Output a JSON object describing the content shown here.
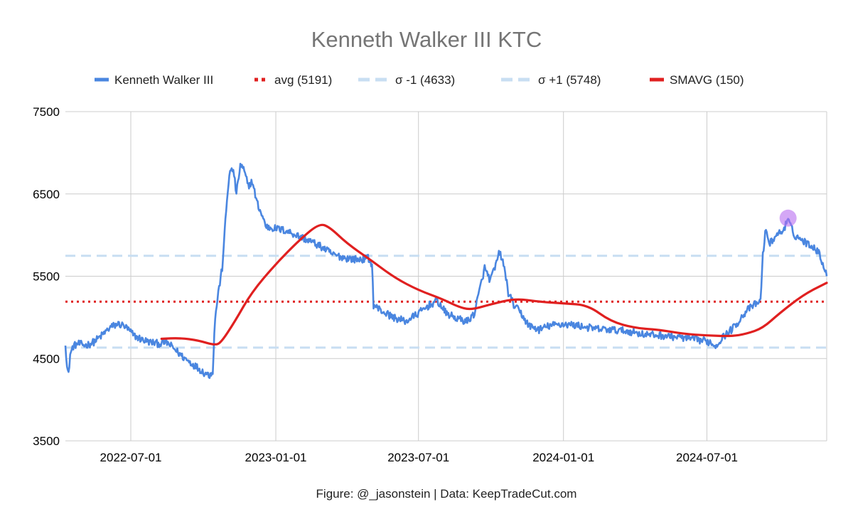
{
  "chart_data": {
    "type": "line",
    "title": "Kenneth Walker III KTC",
    "footer": "Figure: @_jasonstein | Data: KeepTradeCut.com",
    "xlabel": "",
    "ylabel": "",
    "x_range": [
      "2022-04-09",
      "2024-11-30"
    ],
    "ylim": [
      3500,
      7500
    ],
    "y_ticks": [
      "7500",
      "6500",
      "5500",
      "4500",
      "3500"
    ],
    "x_ticks": [
      "2022-07-01",
      "2023-01-01",
      "2023-07-01",
      "2024-01-01",
      "2024-07-01"
    ],
    "grid": true,
    "legend_position": "top",
    "legend": [
      {
        "label": "Kenneth Walker III",
        "color": "#4a86e0",
        "style": "solid"
      },
      {
        "label": "avg (5191)",
        "color": "#e02020",
        "style": "dotted"
      },
      {
        "label": "σ -1 (4633)",
        "color": "#c8def2",
        "style": "dashed"
      },
      {
        "label": "σ +1 (5748)",
        "color": "#c8def2",
        "style": "dashed"
      },
      {
        "label": "SMAVG (150)",
        "color": "#e02020",
        "style": "solid"
      }
    ],
    "reference_lines": {
      "avg": 5191,
      "sigma_minus_1": 4633,
      "sigma_plus_1": 5748
    },
    "series": [
      {
        "name": "Kenneth Walker III",
        "color": "#4a86e0",
        "points": [
          [
            "2022-04-09",
            4700
          ],
          [
            "2022-04-11",
            4400
          ],
          [
            "2022-04-13",
            4300
          ],
          [
            "2022-04-15",
            4550
          ],
          [
            "2022-04-19",
            4650
          ],
          [
            "2022-04-25",
            4680
          ],
          [
            "2022-05-05",
            4660
          ],
          [
            "2022-05-15",
            4700
          ],
          [
            "2022-05-25",
            4780
          ],
          [
            "2022-06-05",
            4880
          ],
          [
            "2022-06-15",
            4920
          ],
          [
            "2022-06-22",
            4900
          ],
          [
            "2022-06-28",
            4850
          ],
          [
            "2022-07-05",
            4780
          ],
          [
            "2022-07-15",
            4730
          ],
          [
            "2022-07-25",
            4700
          ],
          [
            "2022-08-05",
            4680
          ],
          [
            "2022-08-15",
            4700
          ],
          [
            "2022-08-25",
            4620
          ],
          [
            "2022-09-05",
            4520
          ],
          [
            "2022-09-15",
            4450
          ],
          [
            "2022-09-25",
            4380
          ],
          [
            "2022-10-02",
            4330
          ],
          [
            "2022-10-09",
            4300
          ],
          [
            "2022-10-13",
            4350
          ],
          [
            "2022-10-16",
            5000
          ],
          [
            "2022-10-20",
            5300
          ],
          [
            "2022-10-25",
            5600
          ],
          [
            "2022-10-30",
            6300
          ],
          [
            "2022-11-03",
            6750
          ],
          [
            "2022-11-08",
            6800
          ],
          [
            "2022-11-12",
            6500
          ],
          [
            "2022-11-17",
            6850
          ],
          [
            "2022-11-21",
            6800
          ],
          [
            "2022-11-27",
            6600
          ],
          [
            "2022-12-02",
            6650
          ],
          [
            "2022-12-08",
            6400
          ],
          [
            "2022-12-14",
            6250
          ],
          [
            "2022-12-20",
            6100
          ],
          [
            "2023-01-01",
            6080
          ],
          [
            "2023-01-15",
            6050
          ],
          [
            "2023-02-01",
            5980
          ],
          [
            "2023-02-15",
            5920
          ],
          [
            "2023-03-01",
            5850
          ],
          [
            "2023-03-15",
            5760
          ],
          [
            "2023-04-01",
            5720
          ],
          [
            "2023-04-15",
            5700
          ],
          [
            "2023-04-28",
            5720
          ],
          [
            "2023-05-03",
            5650
          ],
          [
            "2023-05-05",
            5150
          ],
          [
            "2023-05-15",
            5080
          ],
          [
            "2023-05-30",
            5000
          ],
          [
            "2023-06-15",
            4950
          ],
          [
            "2023-07-01",
            5050
          ],
          [
            "2023-07-15",
            5150
          ],
          [
            "2023-07-25",
            5200
          ],
          [
            "2023-08-05",
            5050
          ],
          [
            "2023-08-20",
            4980
          ],
          [
            "2023-09-01",
            4950
          ],
          [
            "2023-09-10",
            5050
          ],
          [
            "2023-09-17",
            5350
          ],
          [
            "2023-09-23",
            5600
          ],
          [
            "2023-09-30",
            5450
          ],
          [
            "2023-10-06",
            5600
          ],
          [
            "2023-10-12",
            5800
          ],
          [
            "2023-10-18",
            5600
          ],
          [
            "2023-10-23",
            5300
          ],
          [
            "2023-10-30",
            5150
          ],
          [
            "2023-11-08",
            5050
          ],
          [
            "2023-11-18",
            4900
          ],
          [
            "2023-12-01",
            4850
          ],
          [
            "2023-12-15",
            4900
          ],
          [
            "2024-01-01",
            4920
          ],
          [
            "2024-01-20",
            4900
          ],
          [
            "2024-02-10",
            4860
          ],
          [
            "2024-03-01",
            4850
          ],
          [
            "2024-03-25",
            4830
          ],
          [
            "2024-04-15",
            4790
          ],
          [
            "2024-05-05",
            4780
          ],
          [
            "2024-05-25",
            4760
          ],
          [
            "2024-06-10",
            4740
          ],
          [
            "2024-06-25",
            4720
          ],
          [
            "2024-07-05",
            4700
          ],
          [
            "2024-07-12",
            4650
          ],
          [
            "2024-07-20",
            4750
          ],
          [
            "2024-08-01",
            4850
          ],
          [
            "2024-08-10",
            4950
          ],
          [
            "2024-08-20",
            5080
          ],
          [
            "2024-08-30",
            5150
          ],
          [
            "2024-09-07",
            5200
          ],
          [
            "2024-09-10",
            5750
          ],
          [
            "2024-09-13",
            6050
          ],
          [
            "2024-09-19",
            5900
          ],
          [
            "2024-09-27",
            6000
          ],
          [
            "2024-10-05",
            6050
          ],
          [
            "2024-10-12",
            6180
          ],
          [
            "2024-10-20",
            6000
          ],
          [
            "2024-10-28",
            5950
          ],
          [
            "2024-11-05",
            5900
          ],
          [
            "2024-11-15",
            5850
          ],
          [
            "2024-11-22",
            5750
          ],
          [
            "2024-11-30",
            5500
          ]
        ]
      },
      {
        "name": "SMAVG (150)",
        "color": "#e02020",
        "points": [
          [
            "2022-08-09",
            4740
          ],
          [
            "2022-09-01",
            4750
          ],
          [
            "2022-09-25",
            4720
          ],
          [
            "2022-10-16",
            4660
          ],
          [
            "2022-10-24",
            4700
          ],
          [
            "2022-11-10",
            4950
          ],
          [
            "2022-12-01",
            5300
          ],
          [
            "2023-01-01",
            5650
          ],
          [
            "2023-02-01",
            5950
          ],
          [
            "2023-02-25",
            6140
          ],
          [
            "2023-03-10",
            6100
          ],
          [
            "2023-04-01",
            5900
          ],
          [
            "2023-05-01",
            5700
          ],
          [
            "2023-06-01",
            5480
          ],
          [
            "2023-07-01",
            5330
          ],
          [
            "2023-08-01",
            5220
          ],
          [
            "2023-08-20",
            5130
          ],
          [
            "2023-09-05",
            5090
          ],
          [
            "2023-10-01",
            5160
          ],
          [
            "2023-11-01",
            5230
          ],
          [
            "2023-12-01",
            5190
          ],
          [
            "2024-01-01",
            5170
          ],
          [
            "2024-02-01",
            5150
          ],
          [
            "2024-03-01",
            4950
          ],
          [
            "2024-04-01",
            4870
          ],
          [
            "2024-05-01",
            4850
          ],
          [
            "2024-06-01",
            4800
          ],
          [
            "2024-07-01",
            4780
          ],
          [
            "2024-08-01",
            4770
          ],
          [
            "2024-08-20",
            4800
          ],
          [
            "2024-09-10",
            4870
          ],
          [
            "2024-10-01",
            5050
          ],
          [
            "2024-11-01",
            5280
          ],
          [
            "2024-11-30",
            5420
          ]
        ]
      }
    ],
    "highlight_point": {
      "x": "2024-10-12",
      "y": 6180,
      "color": "#b86cf0"
    }
  }
}
